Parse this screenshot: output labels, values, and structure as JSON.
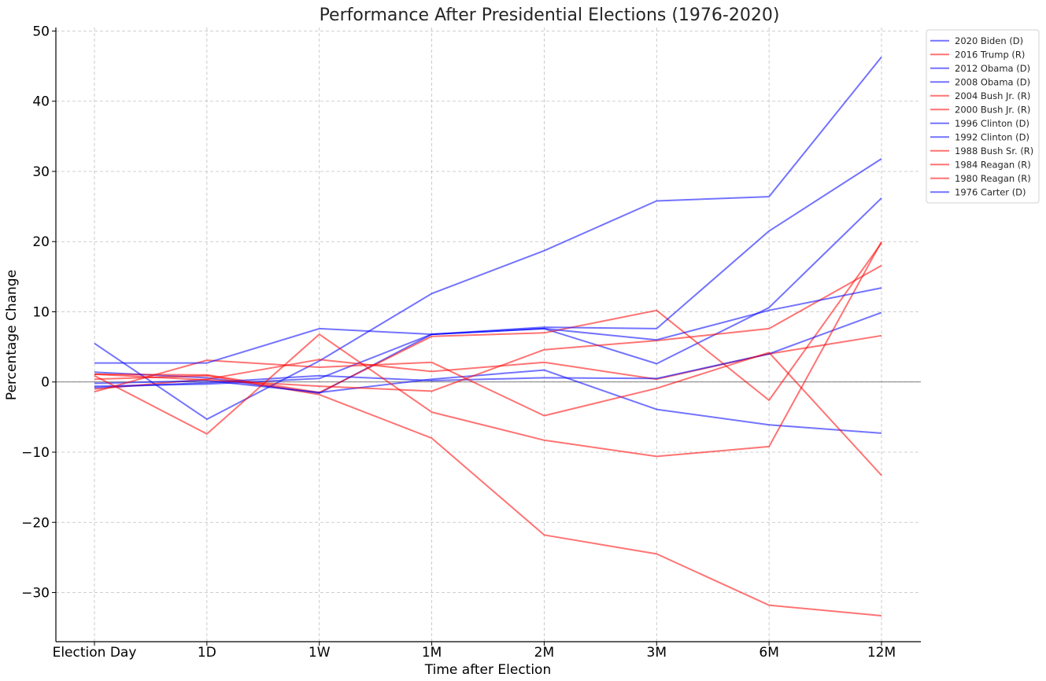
{
  "chart_data": {
    "type": "line",
    "title": "Performance After Presidential Elections (1976-2020)",
    "xlabel": "Time after Election",
    "ylabel": "Percentage Change",
    "categories": [
      "Election Day",
      "1D",
      "1W",
      "1M",
      "2M",
      "3M",
      "6M",
      "12M"
    ],
    "ylim": [
      -37,
      50.5
    ],
    "yticks": [
      50,
      40,
      30,
      20,
      10,
      0,
      -10,
      -20,
      -30
    ],
    "ytick_labels": [
      "50",
      "40",
      "30",
      "20",
      "10",
      "0",
      "−10",
      "−20",
      "−30"
    ],
    "grid": true,
    "zero_line": true,
    "legend_position": "top-right",
    "colors": {
      "D": "#0000ff",
      "R": "#ff0000"
    },
    "series": [
      {
        "name": "2020 Biden (D)",
        "party": "D",
        "values": [
          1.4,
          0.6,
          -1.6,
          6.8,
          7.6,
          2.6,
          10.6,
          26.2
        ]
      },
      {
        "name": "2016 Trump (R)",
        "party": "R",
        "values": [
          1.1,
          1.0,
          -1.5,
          6.5,
          7.0,
          10.2,
          -2.6,
          19.8
        ]
      },
      {
        "name": "2012 Obama (D)",
        "party": "D",
        "values": [
          -0.6,
          -0.3,
          0.5,
          6.8,
          7.8,
          7.6,
          21.5,
          31.8
        ]
      },
      {
        "name": "2008 Obama (D)",
        "party": "D",
        "values": [
          5.5,
          -5.3,
          3.0,
          12.6,
          18.7,
          25.8,
          26.4,
          46.3
        ]
      },
      {
        "name": "2004 Bush Jr. (R)",
        "party": "R",
        "values": [
          -1.0,
          0.4,
          3.2,
          1.5,
          2.8,
          0.4,
          4.0,
          6.6
        ]
      },
      {
        "name": "2000 Bush Jr. (R)",
        "party": "R",
        "values": [
          0.4,
          0.9,
          -1.8,
          -8.0,
          -21.8,
          -24.5,
          -31.8,
          -33.3
        ]
      },
      {
        "name": "1996 Clinton (D)",
        "party": "D",
        "values": [
          -0.8,
          -0.1,
          0.9,
          0.2,
          0.6,
          0.5,
          4.0,
          9.9
        ]
      },
      {
        "name": "1992 Clinton (D)",
        "party": "D",
        "values": [
          -0.2,
          0.2,
          -1.5,
          0.4,
          1.7,
          -3.9,
          -6.1,
          -7.3
        ]
      },
      {
        "name": "1988 Bush Sr. (R)",
        "party": "R",
        "values": [
          1.1,
          0.3,
          -0.6,
          -1.3,
          4.6,
          5.9,
          7.6,
          16.6
        ]
      },
      {
        "name": "1984 Reagan (R)",
        "party": "R",
        "values": [
          -1.4,
          3.1,
          2.1,
          2.8,
          -4.8,
          -0.9,
          4.2,
          -13.3
        ]
      },
      {
        "name": "1980 Reagan (R)",
        "party": "R",
        "values": [
          0.9,
          -7.4,
          6.8,
          -4.3,
          -8.3,
          -10.6,
          -9.2,
          20.0
        ]
      },
      {
        "name": "1976 Carter (D)",
        "party": "D",
        "values": [
          2.7,
          2.7,
          7.6,
          6.8,
          7.6,
          6.0,
          10.2,
          13.4
        ]
      }
    ]
  }
}
